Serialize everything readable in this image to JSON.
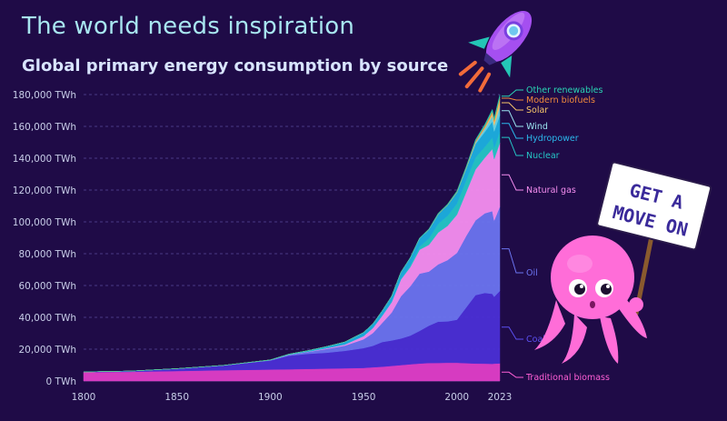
{
  "header": {
    "title": "The world needs inspiration",
    "subtitle": "Global primary energy consumption by source"
  },
  "sign": {
    "line1": "GET A",
    "line2": "MOVE ON"
  },
  "colors": {
    "background": "#1f0b47",
    "title": "#a8e6f0"
  },
  "chart_data": {
    "type": "area",
    "stacked": true,
    "title": "Global primary energy consumption by source",
    "ylabel": "",
    "xlabel": "",
    "unit": "TWh",
    "ylim": [
      0,
      180000
    ],
    "xlim": [
      1800,
      2023
    ],
    "yticks": [
      0,
      20000,
      40000,
      60000,
      80000,
      100000,
      120000,
      140000,
      160000,
      180000
    ],
    "ytick_labels": [
      "0 TWh",
      "20,000 TWh",
      "40,000 TWh",
      "60,000 TWh",
      "80,000 TWh",
      "100,000 TWh",
      "120,000 TWh",
      "140,000 TWh",
      "160,000 TWh",
      "180,000 TWh"
    ],
    "xticks": [
      1800,
      1850,
      1900,
      1950,
      2000,
      2023
    ],
    "grid": true,
    "legend": "right-inline",
    "x": [
      1800,
      1825,
      1850,
      1875,
      1900,
      1910,
      1920,
      1930,
      1940,
      1950,
      1955,
      1960,
      1965,
      1970,
      1975,
      1980,
      1985,
      1990,
      1995,
      2000,
      2005,
      2010,
      2015,
      2019,
      2020,
      2023
    ],
    "series": [
      {
        "name": "Traditional biomass",
        "color": "#e03ec8",
        "values": [
          5600,
          5800,
          6300,
          6800,
          7200,
          7400,
          7600,
          7800,
          8000,
          8200,
          8600,
          9000,
          9500,
          10000,
          10500,
          11000,
          11300,
          11400,
          11500,
          11500,
          11200,
          11000,
          10900,
          10800,
          10900,
          11100
        ]
      },
      {
        "name": "Coal",
        "color": "#4b2fd6",
        "values": [
          100,
          400,
          1500,
          3000,
          5700,
          8500,
          9500,
          10000,
          11000,
          12500,
          13500,
          15500,
          16000,
          16700,
          18000,
          20500,
          23500,
          25900,
          26000,
          27000,
          35000,
          43000,
          44500,
          44000,
          42000,
          45500
        ]
      },
      {
        "name": "Oil",
        "color": "#6b74f0",
        "values": [
          0,
          0,
          0,
          10,
          200,
          500,
          1100,
          2300,
          3200,
          5500,
          8000,
          12000,
          17500,
          26500,
          31000,
          36000,
          34000,
          36000,
          38500,
          42000,
          45000,
          47000,
          50000,
          52000,
          48000,
          53000
        ]
      },
      {
        "name": "Natural gas",
        "color": "#f58ef0",
        "values": [
          0,
          0,
          0,
          10,
          60,
          160,
          250,
          500,
          800,
          2100,
          3200,
          4600,
          6500,
          10500,
          12000,
          15000,
          16800,
          20000,
          21500,
          24000,
          27500,
          32000,
          35000,
          39000,
          38500,
          40000
        ]
      },
      {
        "name": "Nuclear",
        "color": "#25c7c7",
        "values": [
          0,
          0,
          0,
          0,
          0,
          0,
          0,
          0,
          0,
          0,
          0,
          10,
          100,
          300,
          1000,
          2000,
          4000,
          5500,
          6300,
          7000,
          7500,
          7500,
          6800,
          7200,
          7000,
          7000
        ]
      },
      {
        "name": "Hydropower",
        "color": "#1cb0e0",
        "values": [
          0,
          0,
          0,
          0,
          100,
          300,
          600,
          1000,
          1500,
          2200,
          2600,
          3000,
          3600,
          4300,
          4900,
          5200,
          5600,
          6000,
          6700,
          7000,
          7300,
          8500,
          9400,
          10200,
          10500,
          10500
        ]
      },
      {
        "name": "Wind",
        "color": "#6cd6e6",
        "values": [
          0,
          0,
          0,
          0,
          0,
          0,
          0,
          0,
          0,
          0,
          0,
          0,
          0,
          0,
          0,
          0,
          0,
          0,
          0,
          80,
          300,
          900,
          2100,
          3400,
          3800,
          5500
        ]
      },
      {
        "name": "Solar",
        "color": "#f7c66a",
        "values": [
          0,
          0,
          0,
          0,
          0,
          0,
          0,
          0,
          0,
          0,
          0,
          0,
          0,
          0,
          0,
          0,
          0,
          0,
          0,
          5,
          20,
          100,
          700,
          1800,
          2100,
          4500
        ]
      },
      {
        "name": "Modern biofuels",
        "color": "#f28a3c",
        "values": [
          0,
          0,
          0,
          0,
          0,
          0,
          0,
          0,
          0,
          0,
          0,
          0,
          0,
          0,
          0,
          0,
          100,
          200,
          250,
          300,
          400,
          900,
          1000,
          1100,
          1100,
          1200
        ]
      },
      {
        "name": "Other renewables",
        "color": "#22d1b0",
        "values": [
          0,
          0,
          0,
          0,
          0,
          0,
          0,
          0,
          0,
          0,
          0,
          0,
          0,
          100,
          150,
          200,
          300,
          400,
          450,
          500,
          600,
          800,
          1000,
          1200,
          1300,
          1500
        ]
      }
    ],
    "legend_labels": [
      "Other renewables",
      "Modern biofuels",
      "Solar",
      "Wind",
      "Hydropower",
      "Nuclear",
      "Natural gas",
      "Oil",
      "Coal",
      "Traditional biomass"
    ]
  }
}
